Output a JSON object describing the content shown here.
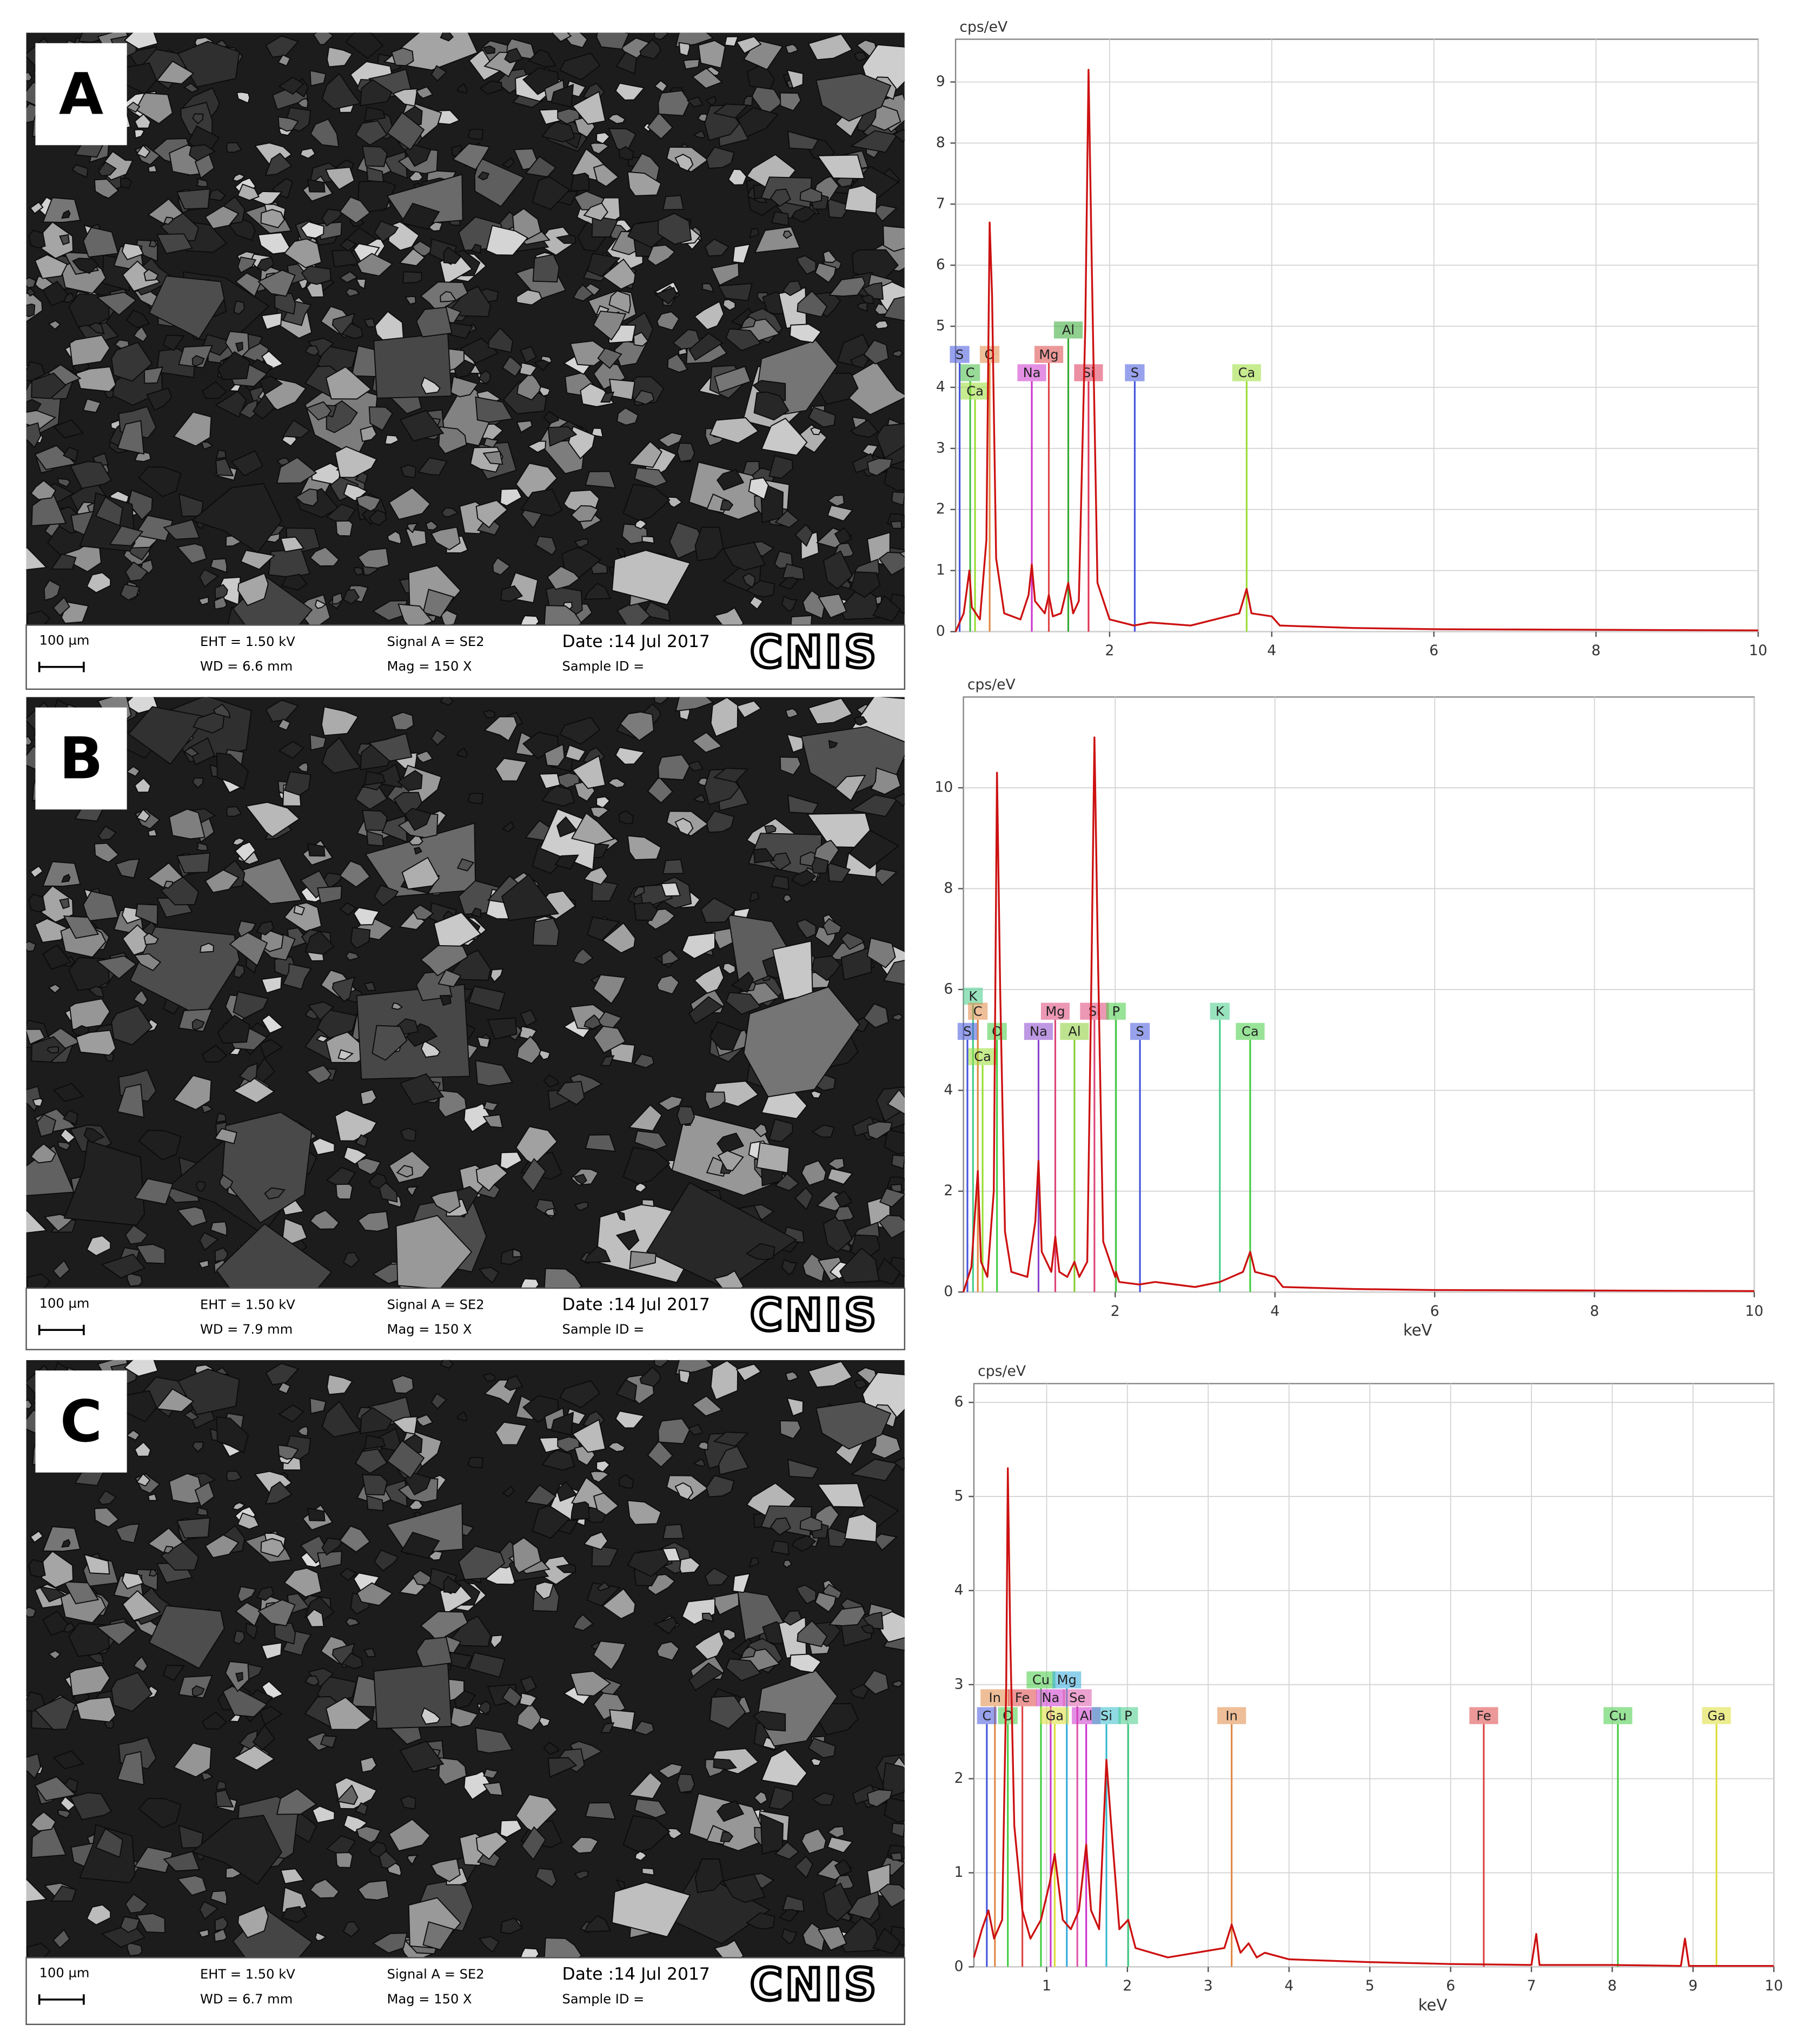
{
  "panels": [
    {
      "letter": "A",
      "scale": "100 µm",
      "eht": "EHT = 1.50 kV",
      "wd": "WD = 6.6 mm",
      "signal": "Signal A = SE2",
      "mag": "Mag =   150 X",
      "date": "Date :14 Jul 2017",
      "sample": "Sample ID =",
      "logo": "CNIS"
    },
    {
      "letter": "B",
      "scale": "100 µm",
      "eht": "EHT = 1.50 kV",
      "wd": "WD = 7.9 mm",
      "signal": "Signal A = SE2",
      "mag": "Mag =   150 X",
      "date": "Date :14 Jul 2017",
      "sample": "Sample ID =",
      "logo": "CNIS"
    },
    {
      "letter": "C",
      "scale": "100 µm",
      "eht": "EHT = 1.50 kV",
      "wd": "WD = 6.7 mm",
      "signal": "Signal A = SE2",
      "mag": "Mag =   150 X",
      "date": "Date :14 Jul 2017",
      "sample": "Sample ID =",
      "logo": "CNIS"
    }
  ],
  "chart_data": [
    {
      "type": "line",
      "y_label": "cps/eV",
      "color": "#cc1111",
      "xlim": [
        0.1,
        10
      ],
      "ylim": [
        0,
        9.7
      ],
      "xticks": [
        2,
        4,
        6,
        8,
        10
      ],
      "yticks": [
        0,
        1,
        2,
        3,
        4,
        5,
        6,
        7,
        8,
        9
      ],
      "grid": true,
      "x": [
        0.1,
        0.2,
        0.27,
        0.3,
        0.4,
        0.48,
        0.52,
        0.55,
        0.6,
        0.7,
        0.9,
        1.0,
        1.04,
        1.08,
        1.2,
        1.25,
        1.3,
        1.4,
        1.49,
        1.55,
        1.62,
        1.7,
        1.74,
        1.78,
        1.85,
        2.0,
        2.3,
        2.5,
        3.0,
        3.6,
        3.69,
        3.75,
        4.0,
        4.1,
        5,
        6,
        8,
        10
      ],
      "values": [
        0,
        0.3,
        1.0,
        0.4,
        0.2,
        1.5,
        6.7,
        5.5,
        1.2,
        0.3,
        0.2,
        0.6,
        1.1,
        0.5,
        0.3,
        0.6,
        0.25,
        0.3,
        0.8,
        0.3,
        0.5,
        5,
        9.2,
        6,
        0.8,
        0.2,
        0.1,
        0.15,
        0.1,
        0.3,
        0.7,
        0.3,
        0.25,
        0.1,
        0.06,
        0.04,
        0.03,
        0.02
      ],
      "elements": [
        {
          "name": "S",
          "energy": 0.15,
          "height": 4.4,
          "color": "#4455dd"
        },
        {
          "name": "C",
          "energy": 0.28,
          "height": 4.1,
          "color": "#44bb44"
        },
        {
          "name": "Ca",
          "energy": 0.34,
          "height": 3.8,
          "color": "#99dd33"
        },
        {
          "name": "O",
          "energy": 0.52,
          "height": 4.4,
          "color": "#e08844"
        },
        {
          "name": "Na",
          "energy": 1.04,
          "height": 4.1,
          "color": "#cc33cc"
        },
        {
          "name": "Mg",
          "energy": 1.25,
          "height": 4.4,
          "color": "#dd4444"
        },
        {
          "name": "Al",
          "energy": 1.49,
          "height": 4.8,
          "color": "#33aa33"
        },
        {
          "name": "Si",
          "energy": 1.74,
          "height": 4.1,
          "color": "#dd3355"
        },
        {
          "name": "S",
          "energy": 2.31,
          "height": 4.1,
          "color": "#4455dd"
        },
        {
          "name": "Ca",
          "energy": 3.69,
          "height": 4.1,
          "color": "#99dd33"
        }
      ]
    },
    {
      "type": "line",
      "y_label": "cps/eV",
      "x_label": "keV",
      "color": "#cc1111",
      "xlim": [
        0.1,
        10
      ],
      "ylim": [
        0,
        11.8
      ],
      "xticks": [
        2,
        4,
        6,
        8,
        10
      ],
      "yticks": [
        0,
        2,
        4,
        6,
        8,
        10
      ],
      "grid": true,
      "x": [
        0.1,
        0.2,
        0.28,
        0.32,
        0.4,
        0.48,
        0.52,
        0.56,
        0.62,
        0.7,
        0.9,
        1.0,
        1.04,
        1.08,
        1.2,
        1.25,
        1.3,
        1.4,
        1.49,
        1.55,
        1.65,
        1.7,
        1.74,
        1.78,
        1.85,
        2.0,
        2.01,
        2.05,
        2.3,
        2.5,
        3.0,
        3.31,
        3.6,
        3.69,
        3.75,
        4.0,
        4.1,
        5,
        6,
        8,
        10
      ],
      "values": [
        0,
        0.5,
        2.4,
        0.6,
        0.3,
        2.0,
        10.3,
        6,
        1.2,
        0.4,
        0.3,
        1.4,
        2.6,
        0.8,
        0.4,
        1.1,
        0.4,
        0.3,
        0.6,
        0.3,
        0.6,
        6,
        11,
        7,
        1,
        0.3,
        0.4,
        0.2,
        0.15,
        0.2,
        0.1,
        0.2,
        0.4,
        0.8,
        0.4,
        0.3,
        0.1,
        0.06,
        0.04,
        0.03,
        0.02
      ],
      "elements": [
        {
          "name": "K",
          "energy": 0.22,
          "height": 5.7,
          "color": "#44cc88"
        },
        {
          "name": "C",
          "energy": 0.28,
          "height": 5.4,
          "color": "#e08844"
        },
        {
          "name": "S",
          "energy": 0.15,
          "height": 5.0,
          "color": "#4455dd"
        },
        {
          "name": "Ca",
          "energy": 0.34,
          "height": 4.5,
          "color": "#99dd33"
        },
        {
          "name": "O",
          "energy": 0.52,
          "height": 5.0,
          "color": "#44cc44"
        },
        {
          "name": "Na",
          "energy": 1.04,
          "height": 5.0,
          "color": "#8844cc"
        },
        {
          "name": "Mg",
          "energy": 1.25,
          "height": 5.4,
          "color": "#dd4477"
        },
        {
          "name": "Al",
          "energy": 1.49,
          "height": 5.0,
          "color": "#88cc33"
        },
        {
          "name": "Si",
          "energy": 1.74,
          "height": 5.4,
          "color": "#dd4477"
        },
        {
          "name": "P",
          "energy": 2.01,
          "height": 5.4,
          "color": "#44cc44"
        },
        {
          "name": "S",
          "energy": 2.31,
          "height": 5.0,
          "color": "#4455dd"
        },
        {
          "name": "K",
          "energy": 3.31,
          "height": 5.4,
          "color": "#44cc88"
        },
        {
          "name": "Ca",
          "energy": 3.69,
          "height": 5.0,
          "color": "#44cc44"
        }
      ]
    },
    {
      "type": "line",
      "y_label": "cps/eV",
      "x_label": "keV",
      "color": "#cc1111",
      "xlim": [
        0.1,
        10
      ],
      "ylim": [
        0,
        6.2
      ],
      "xticks": [
        1,
        2,
        3,
        4,
        5,
        6,
        7,
        8,
        9,
        10
      ],
      "yticks": [
        0,
        1,
        2,
        3,
        4,
        5,
        6
      ],
      "grid": true,
      "x": [
        0.1,
        0.2,
        0.28,
        0.35,
        0.45,
        0.5,
        0.52,
        0.55,
        0.6,
        0.7,
        0.8,
        0.93,
        1.04,
        1.1,
        1.2,
        1.3,
        1.4,
        1.49,
        1.55,
        1.65,
        1.74,
        1.8,
        1.9,
        2.01,
        2.1,
        2.5,
        3.2,
        3.29,
        3.4,
        3.5,
        3.6,
        3.7,
        4,
        5,
        6,
        7.0,
        7.06,
        7.1,
        8,
        8.85,
        8.9,
        8.95,
        10
      ],
      "values": [
        0.1,
        0.4,
        0.6,
        0.3,
        0.5,
        3,
        5.3,
        3.5,
        1.5,
        0.6,
        0.3,
        0.5,
        0.9,
        1.2,
        0.5,
        0.4,
        0.6,
        1.3,
        0.6,
        0.4,
        2.2,
        1.5,
        0.4,
        0.5,
        0.2,
        0.1,
        0.2,
        0.45,
        0.15,
        0.25,
        0.1,
        0.15,
        0.08,
        0.05,
        0.03,
        0.02,
        0.35,
        0.02,
        0.02,
        0.01,
        0.3,
        0.01,
        0.01
      ],
      "elements": [
        {
          "name": "Cu",
          "energy": 0.93,
          "height": 2.96,
          "color": "#44cc44"
        },
        {
          "name": "Mg",
          "energy": 1.25,
          "height": 2.96,
          "color": "#33aadd"
        },
        {
          "name": "In",
          "energy": 0.36,
          "height": 2.77,
          "color": "#e08844"
        },
        {
          "name": "Fe",
          "energy": 0.7,
          "height": 2.77,
          "color": "#dd4444"
        },
        {
          "name": "Na",
          "energy": 1.05,
          "height": 2.77,
          "color": "#cc33cc"
        },
        {
          "name": "Se",
          "energy": 1.38,
          "height": 2.77,
          "color": "#dd55aa"
        },
        {
          "name": "C",
          "energy": 0.26,
          "height": 2.58,
          "color": "#4455dd"
        },
        {
          "name": "O",
          "energy": 0.52,
          "height": 2.58,
          "color": "#44cc44"
        },
        {
          "name": "Ga",
          "energy": 1.1,
          "height": 2.58,
          "color": "#dddd33"
        },
        {
          "name": "Al",
          "energy": 1.49,
          "height": 2.58,
          "color": "#cc33cc"
        },
        {
          "name": "Si",
          "energy": 1.74,
          "height": 2.58,
          "color": "#33bbcc"
        },
        {
          "name": "P",
          "energy": 2.01,
          "height": 2.58,
          "color": "#44cc88"
        },
        {
          "name": "In",
          "energy": 3.29,
          "height": 2.58,
          "color": "#e08844"
        },
        {
          "name": "Fe",
          "energy": 6.41,
          "height": 2.58,
          "color": "#dd4444"
        },
        {
          "name": "Cu",
          "energy": 8.07,
          "height": 2.58,
          "color": "#44cc44"
        },
        {
          "name": "Ga",
          "energy": 9.29,
          "height": 2.58,
          "color": "#dddd33"
        }
      ]
    }
  ]
}
